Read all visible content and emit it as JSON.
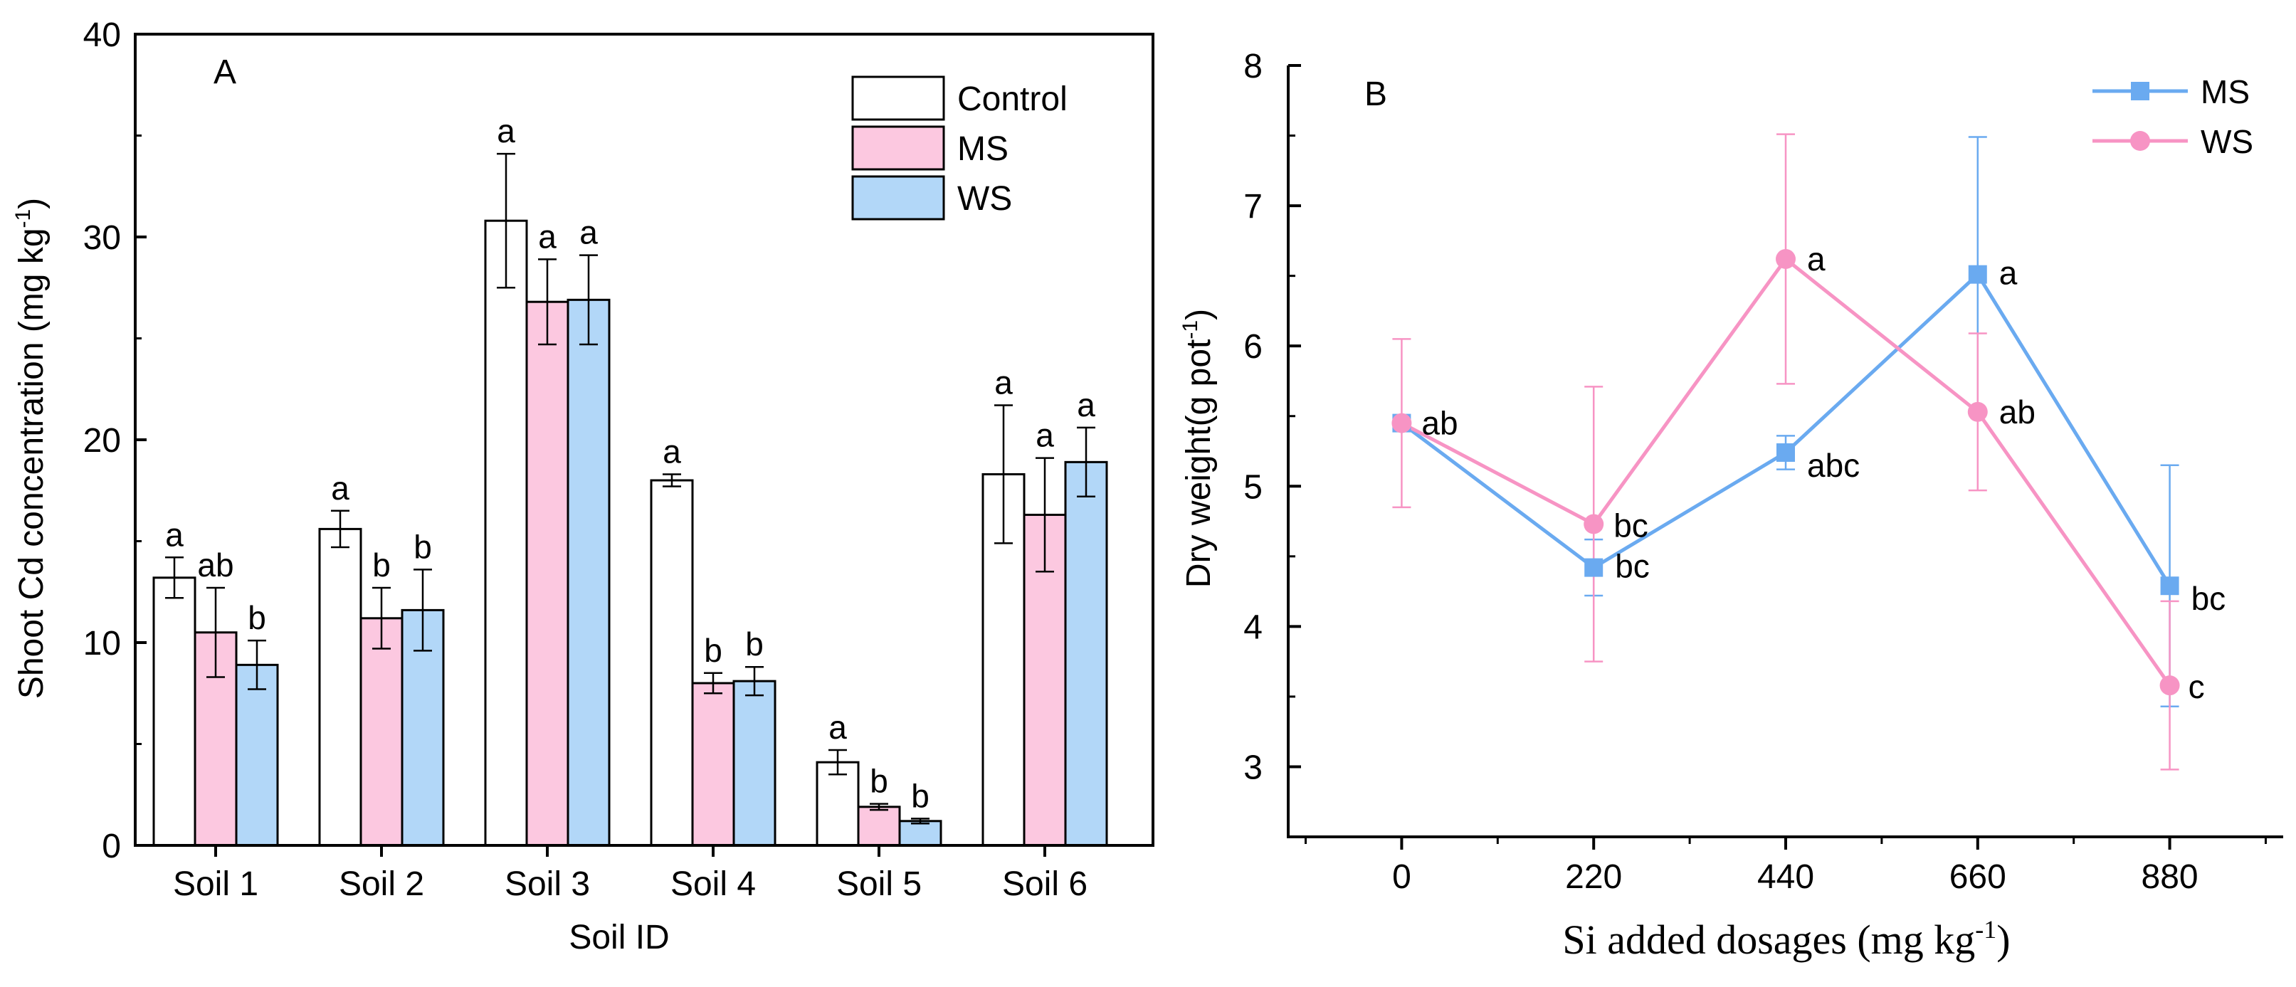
{
  "chart_data": [
    {
      "type": "bar",
      "panel_label": "A",
      "title": "",
      "xlabel": "Soil ID",
      "ylabel": "Shoot Cd concentration (mg kg",
      "ylabel_sup": "-1",
      "ylabel_close": ")",
      "ylim": [
        0,
        40
      ],
      "yticks": [
        "0",
        "10",
        "20",
        "30",
        "40"
      ],
      "categories": [
        "Soil 1",
        "Soil 2",
        "Soil 3",
        "Soil 4",
        "Soil 5",
        "Soil 6"
      ],
      "legend": "top-right",
      "grid": false,
      "series": [
        {
          "name": "Control",
          "color": "#ffffff",
          "values": [
            13.2,
            15.6,
            30.8,
            18.0,
            4.1,
            18.3
          ],
          "errors": [
            1.0,
            0.9,
            3.3,
            0.3,
            0.6,
            3.4
          ],
          "letters": [
            "a",
            "a",
            "a",
            "a",
            "a",
            "a"
          ]
        },
        {
          "name": "MS",
          "color": "#fcc8e0",
          "values": [
            10.5,
            11.2,
            26.8,
            8.0,
            1.9,
            16.3
          ],
          "errors": [
            2.2,
            1.5,
            2.1,
            0.5,
            0.15,
            2.8
          ],
          "letters": [
            "ab",
            "b",
            "a",
            "b",
            "b",
            "a"
          ]
        },
        {
          "name": "WS",
          "color": "#b2d7f8",
          "values": [
            8.9,
            11.6,
            26.9,
            8.1,
            1.2,
            18.9
          ],
          "errors": [
            1.2,
            2.0,
            2.2,
            0.7,
            0.12,
            1.7
          ],
          "letters": [
            "b",
            "b",
            "a",
            "b",
            "b",
            "a"
          ]
        }
      ]
    },
    {
      "type": "line",
      "panel_label": "B",
      "title": "",
      "xlabel": "Si added dosages (mg kg",
      "xlabel_sup": "-1",
      "xlabel_close": ")",
      "ylabel": "Dry weight(g pot",
      "ylabel_sup": "-1",
      "ylabel_close": ")",
      "x": [
        0,
        220,
        440,
        660,
        880
      ],
      "xticks": [
        "0",
        "220",
        "440",
        "660",
        "880"
      ],
      "xlim": [
        -130,
        1010
      ],
      "ylim": [
        2.5,
        8
      ],
      "yticks": [
        "3",
        "4",
        "5",
        "6",
        "7",
        "8"
      ],
      "legend": "top-right",
      "grid": false,
      "series": [
        {
          "name": "MS",
          "color": "#6aaaf0",
          "marker": "square",
          "values": [
            5.45,
            4.42,
            5.24,
            6.51,
            4.29
          ],
          "errors": [
            0.0,
            0.2,
            0.12,
            0.98,
            0.86
          ],
          "letters": [
            "",
            "bc",
            "abc",
            "a",
            "bc"
          ]
        },
        {
          "name": "WS",
          "color": "#f794c4",
          "marker": "circle",
          "values": [
            5.45,
            4.73,
            6.62,
            5.53,
            3.58
          ],
          "errors": [
            0.6,
            0.98,
            0.89,
            0.56,
            0.6
          ],
          "letters": [
            "ab",
            "bc",
            "a",
            "ab",
            "c"
          ]
        }
      ]
    }
  ]
}
